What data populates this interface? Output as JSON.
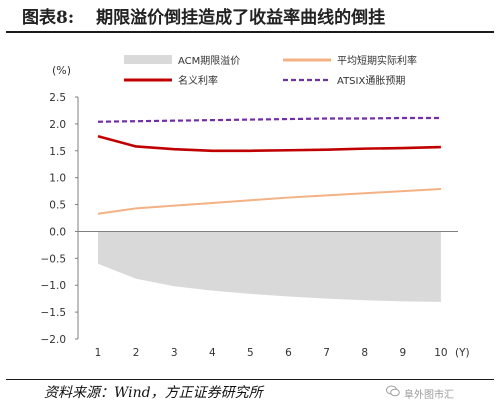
{
  "title_label": "图表8:",
  "title_text": "期限溢价倒挂造成了收益率曲线的倒挂",
  "source": "资料来源：Wind，方正证券研究所",
  "watermark": "阜外图市汇",
  "colors": {
    "acm": "#d9d9d9",
    "avg_short": "#f4b183",
    "nominal": "#c00000",
    "atsix": "#7030a0",
    "axis": "#7f7f7f"
  },
  "chart_data": {
    "type": "line",
    "x": [
      1,
      2,
      3,
      4,
      5,
      6,
      7,
      8,
      9,
      10
    ],
    "xlabel": "(Y)",
    "ylabel": "(%)",
    "ylim": [
      -2.0,
      2.5
    ],
    "yticks": [
      "2.5",
      "2.0",
      "1.5",
      "1.0",
      "0.5",
      "0.0",
      "−0.5",
      "−1.0",
      "−1.5",
      "−2.0"
    ],
    "ytick_values": [
      2.5,
      2.0,
      1.5,
      1.0,
      0.5,
      0.0,
      -0.5,
      -1.0,
      -1.5,
      -2.0
    ],
    "xticks": [
      "1",
      "2",
      "3",
      "4",
      "5",
      "6",
      "7",
      "8",
      "9",
      "10"
    ],
    "grid": false,
    "legend_position": "top",
    "series": [
      {
        "name": "ACM期限溢价",
        "type": "area",
        "color_key": "acm",
        "values": [
          -0.6,
          -0.88,
          -1.02,
          -1.1,
          -1.16,
          -1.21,
          -1.25,
          -1.28,
          -1.3,
          -1.31
        ]
      },
      {
        "name": "平均短期实际利率",
        "type": "line",
        "color_key": "avg_short",
        "values": [
          0.33,
          0.43,
          0.48,
          0.53,
          0.58,
          0.63,
          0.67,
          0.71,
          0.75,
          0.79
        ]
      },
      {
        "name": "名义利率",
        "type": "line",
        "color_key": "nominal",
        "values": [
          1.77,
          1.58,
          1.53,
          1.5,
          1.5,
          1.51,
          1.52,
          1.54,
          1.55,
          1.57
        ]
      },
      {
        "name": "ATSIX通胀预期",
        "type": "dashed",
        "color_key": "atsix",
        "values": [
          2.04,
          2.05,
          2.06,
          2.07,
          2.08,
          2.09,
          2.1,
          2.1,
          2.11,
          2.11
        ]
      }
    ]
  }
}
